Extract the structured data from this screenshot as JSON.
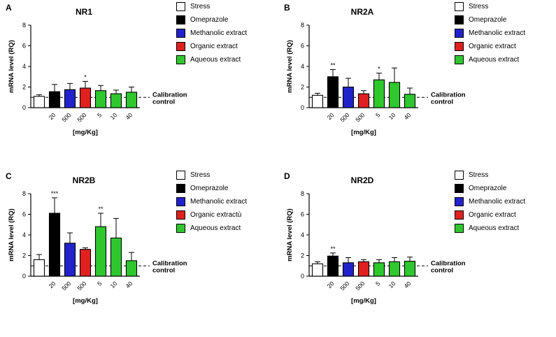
{
  "group_colors": {
    "Stress": "#ffffff",
    "Omeprazole": "#000000",
    "Methanolic extract": "#2222cc",
    "Organic extract": "#e02020",
    "Aqueous extract": "#2ec82e"
  },
  "panels": [
    {
      "letter": "A",
      "title": "NR1",
      "legend": [
        {
          "label": "Stress",
          "color_key": "Stress"
        },
        {
          "label": "Omeprazole",
          "color_key": "Omeprazole"
        },
        {
          "label": "Methanolic extract",
          "color_key": "Methanolic extract"
        },
        {
          "label": "Organic extract",
          "color_key": "Organic extract"
        },
        {
          "label": "Aqueous extract",
          "color_key": "Aqueous extract"
        }
      ]
    },
    {
      "letter": "B",
      "title": "NR2A",
      "legend": [
        {
          "label": "Stress",
          "color_key": "Stress"
        },
        {
          "label": "Omeprazole",
          "color_key": "Omeprazole"
        },
        {
          "label": "Methanolic extract",
          "color_key": "Methanolic extract"
        },
        {
          "label": "Organic extract",
          "color_key": "Organic extract"
        },
        {
          "label": "Aqueous extract",
          "color_key": "Aqueous extract"
        }
      ]
    },
    {
      "letter": "C",
      "title": "NR2B",
      "legend": [
        {
          "label": "Stress",
          "color_key": "Stress"
        },
        {
          "label": "Omeprazole",
          "color_key": "Omeprazole"
        },
        {
          "label": "Methanolic extract",
          "color_key": "Methanolic extract"
        },
        {
          "label": "Organic extractù",
          "color_key": "Organic extract"
        },
        {
          "label": "Aqueous extract",
          "color_key": "Aqueous extract"
        }
      ]
    },
    {
      "letter": "D",
      "title": "NR2D",
      "legend": [
        {
          "label": "Stress",
          "color_key": "Stress"
        },
        {
          "label": "Omeprazole",
          "color_key": "Omeprazole"
        },
        {
          "label": "Methanolic extract",
          "color_key": "Methanolic extract"
        },
        {
          "label": "Organic extract",
          "color_key": "Organic extract"
        },
        {
          "label": "Aqueous extract",
          "color_key": "Aqueous extract"
        }
      ]
    }
  ],
  "chart_data": [
    {
      "type": "bar",
      "title": "NR1",
      "ylabel": "mRNA level (RQ)",
      "xlabel": "[mg/Kg]",
      "ylim": [
        0,
        8
      ],
      "yticks": [
        0,
        2,
        4,
        6,
        8
      ],
      "legend_position": "right",
      "reference_line": {
        "y": 1,
        "style": "dashed",
        "label": "Calibration control",
        "label_lines": [
          "Calibration",
          "control"
        ]
      },
      "bars": [
        {
          "group": "Stress",
          "dose": "",
          "value": 1.1,
          "error": 0.15,
          "sig": ""
        },
        {
          "group": "Omeprazole",
          "dose": "20",
          "value": 1.55,
          "error": 0.7,
          "sig": ""
        },
        {
          "group": "Methanolic extract",
          "dose": "500",
          "value": 1.75,
          "error": 0.6,
          "sig": ""
        },
        {
          "group": "Organic extract",
          "dose": "500",
          "value": 1.9,
          "error": 0.65,
          "sig": "*"
        },
        {
          "group": "Aqueous extract",
          "dose": "5",
          "value": 1.65,
          "error": 0.5,
          "sig": ""
        },
        {
          "group": "Aqueous extract",
          "dose": "10",
          "value": 1.35,
          "error": 0.35,
          "sig": ""
        },
        {
          "group": "Aqueous extract",
          "dose": "40",
          "value": 1.5,
          "error": 0.5,
          "sig": ""
        }
      ]
    },
    {
      "type": "bar",
      "title": "NR2A",
      "ylabel": "mRNA level (RQ)",
      "xlabel": "[mg/Kg]",
      "ylim": [
        0,
        8
      ],
      "yticks": [
        0,
        2,
        4,
        6,
        8
      ],
      "legend_position": "right",
      "reference_line": {
        "y": 1,
        "style": "dashed",
        "label": "Calibration control",
        "label_lines": [
          "Calibration",
          "control"
        ]
      },
      "bars": [
        {
          "group": "Stress",
          "dose": "",
          "value": 1.2,
          "error": 0.2,
          "sig": ""
        },
        {
          "group": "Omeprazole",
          "dose": "20",
          "value": 3.0,
          "error": 0.7,
          "sig": "**"
        },
        {
          "group": "Methanolic extract",
          "dose": "500",
          "value": 2.0,
          "error": 0.85,
          "sig": ""
        },
        {
          "group": "Organic extract",
          "dose": "500",
          "value": 1.35,
          "error": 0.3,
          "sig": ""
        },
        {
          "group": "Aqueous extract",
          "dose": "5",
          "value": 2.7,
          "error": 0.65,
          "sig": "*"
        },
        {
          "group": "Aqueous extract",
          "dose": "10",
          "value": 2.45,
          "error": 1.4,
          "sig": ""
        },
        {
          "group": "Aqueous extract",
          "dose": "40",
          "value": 1.3,
          "error": 0.6,
          "sig": ""
        }
      ]
    },
    {
      "type": "bar",
      "title": "NR2B",
      "ylabel": "mRNA level (RQ)",
      "xlabel": "[mg/Kg]",
      "ylim": [
        0,
        8
      ],
      "yticks": [
        0,
        2,
        4,
        6,
        8
      ],
      "legend_position": "right",
      "reference_line": {
        "y": 1,
        "style": "dashed",
        "label": "Calibration control",
        "label_lines": [
          "Calibration",
          "control"
        ]
      },
      "bars": [
        {
          "group": "Stress",
          "dose": "",
          "value": 1.6,
          "error": 0.5,
          "sig": ""
        },
        {
          "group": "Omeprazole",
          "dose": "20",
          "value": 6.1,
          "error": 1.5,
          "sig": "***"
        },
        {
          "group": "Methanolic extract",
          "dose": "500",
          "value": 3.2,
          "error": 1.0,
          "sig": ""
        },
        {
          "group": "Organic extract",
          "dose": "500",
          "value": 2.6,
          "error": 0.15,
          "sig": ""
        },
        {
          "group": "Aqueous extract",
          "dose": "5",
          "value": 4.8,
          "error": 1.3,
          "sig": "**"
        },
        {
          "group": "Aqueous extract",
          "dose": "10",
          "value": 3.7,
          "error": 1.9,
          "sig": ""
        },
        {
          "group": "Aqueous extract",
          "dose": "40",
          "value": 1.5,
          "error": 0.8,
          "sig": ""
        }
      ]
    },
    {
      "type": "bar",
      "title": "NR2D",
      "ylabel": "mRNA level (RQ)",
      "xlabel": "[mg/Kg]",
      "ylim": [
        0,
        8
      ],
      "yticks": [
        0,
        2,
        4,
        6,
        8
      ],
      "legend_position": "right",
      "reference_line": {
        "y": 1,
        "style": "dashed",
        "label": "Calibration control",
        "label_lines": [
          "Calibration",
          "control"
        ]
      },
      "bars": [
        {
          "group": "Stress",
          "dose": "",
          "value": 1.2,
          "error": 0.2,
          "sig": ""
        },
        {
          "group": "Omeprazole",
          "dose": "20",
          "value": 1.95,
          "error": 0.3,
          "sig": "**"
        },
        {
          "group": "Methanolic extract",
          "dose": "500",
          "value": 1.3,
          "error": 0.5,
          "sig": ""
        },
        {
          "group": "Organic extract",
          "dose": "500",
          "value": 1.4,
          "error": 0.2,
          "sig": ""
        },
        {
          "group": "Aqueous extract",
          "dose": "5",
          "value": 1.3,
          "error": 0.3,
          "sig": ""
        },
        {
          "group": "Aqueous extract",
          "dose": "10",
          "value": 1.4,
          "error": 0.4,
          "sig": ""
        },
        {
          "group": "Aqueous extract",
          "dose": "40",
          "value": 1.45,
          "error": 0.4,
          "sig": ""
        }
      ]
    }
  ]
}
